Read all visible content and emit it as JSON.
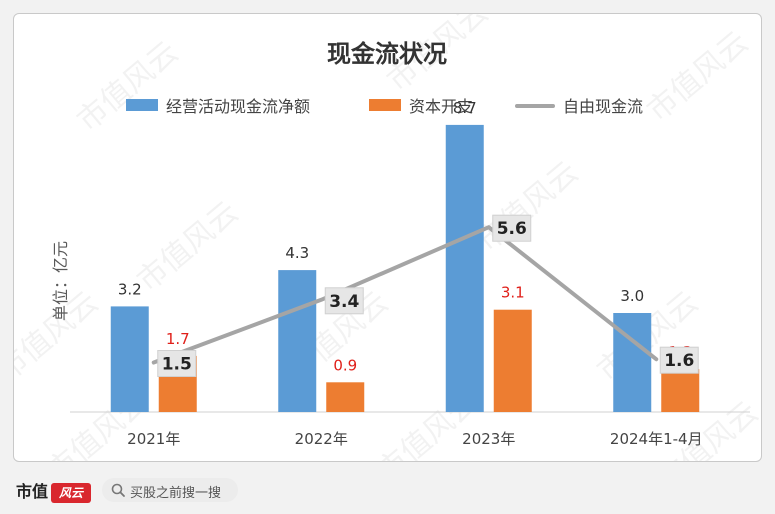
{
  "chart_data": {
    "type": "bar",
    "title": "现金流状况",
    "ylabel": "单位：亿元",
    "categories": [
      "2021年",
      "2022年",
      "2023年",
      "2024年1-4月"
    ],
    "series": [
      {
        "name": "经营活动现金流净额",
        "type": "bar",
        "color": "#5b9bd5",
        "values": [
          3.2,
          4.3,
          8.7,
          3.0
        ],
        "labels": [
          "3.2",
          "4.3",
          "8.7",
          "3.0"
        ],
        "label_color": "#333333"
      },
      {
        "name": "资本开支",
        "type": "bar",
        "color": "#ed7d31",
        "values": [
          1.7,
          0.9,
          3.1,
          1.3
        ],
        "labels": [
          "1.7",
          "0.9",
          "3.1",
          "1.3"
        ],
        "label_color": "#e0201a"
      },
      {
        "name": "自由现金流",
        "type": "line",
        "color": "#a5a5a5",
        "values": [
          1.5,
          3.4,
          5.6,
          1.6
        ],
        "labels": [
          "1.5",
          "3.4",
          "5.6",
          "1.6"
        ],
        "label_color": "#222222"
      }
    ],
    "ylim": [
      0,
      10
    ],
    "grid": false,
    "legend_position": "top"
  },
  "footer": {
    "brand": "市值",
    "brand_logo": "风云",
    "search_icon": "search-icon",
    "search_text": "买股之前搜一搜"
  },
  "watermark": "市值风云"
}
